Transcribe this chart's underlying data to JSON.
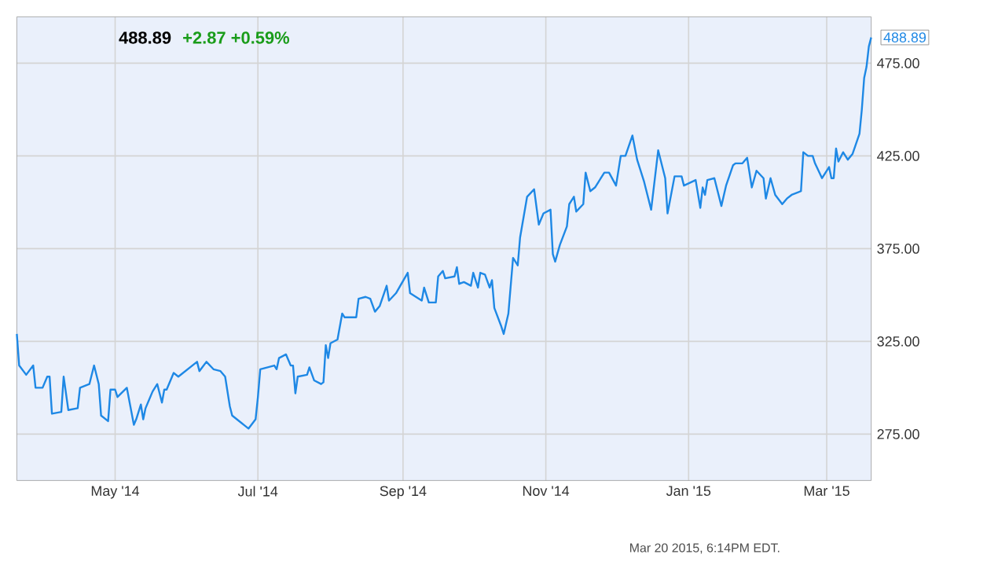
{
  "chart_data": {
    "type": "line",
    "title": "488.89",
    "subtitle": "+2.87  +0.59%",
    "annotations": [
      {
        "text": "488.89",
        "x": "2015-03-20",
        "y": 488.89
      },
      "Mar 20 2015, 6:14PM EDT."
    ],
    "xlim": [
      "2014-03-20",
      "2015-03-20"
    ],
    "xticks": [
      {
        "value": "2014-05-01",
        "label": "May '14"
      },
      {
        "value": "2014-07-01",
        "label": "Jul '14"
      },
      {
        "value": "2014-09-01",
        "label": "Sep '14"
      },
      {
        "value": "2014-11-01",
        "label": "Nov '14"
      },
      {
        "value": "2015-01-01",
        "label": "Jan '15"
      },
      {
        "value": "2015-03-01",
        "label": "Mar '15"
      }
    ],
    "ylim": [
      250,
      500
    ],
    "yticks": [
      {
        "value": 275,
        "label": "275.00"
      },
      {
        "value": 325,
        "label": "325.00"
      },
      {
        "value": 375,
        "label": "375.00"
      },
      {
        "value": 425,
        "label": "425.00"
      },
      {
        "value": 475,
        "label": "475.00"
      }
    ],
    "grid": true,
    "marker": "none",
    "line_style": "solid",
    "series": [
      {
        "color": "#1e88e5",
        "x": [
          "2014-03-20",
          "2014-03-21",
          "2014-03-24",
          "2014-03-27",
          "2014-03-28",
          "2014-03-31",
          "2014-04-02",
          "2014-04-03",
          "2014-04-04",
          "2014-04-08",
          "2014-04-09",
          "2014-04-11",
          "2014-04-15",
          "2014-04-16",
          "2014-04-20",
          "2014-04-22",
          "2014-04-24",
          "2014-04-25",
          "2014-04-28",
          "2014-04-29",
          "2014-05-01",
          "2014-05-02",
          "2014-05-06",
          "2014-05-09",
          "2014-05-10",
          "2014-05-12",
          "2014-05-13",
          "2014-05-14",
          "2014-05-17",
          "2014-05-19",
          "2014-05-21",
          "2014-05-22",
          "2014-05-23",
          "2014-05-26",
          "2014-05-28",
          "2014-06-05",
          "2014-06-06",
          "2014-06-09",
          "2014-06-12",
          "2014-06-15",
          "2014-06-17",
          "2014-06-19",
          "2014-06-20",
          "2014-06-24",
          "2014-06-25",
          "2014-06-27",
          "2014-06-30",
          "2014-07-01",
          "2014-07-02",
          "2014-07-08",
          "2014-07-09",
          "2014-07-10",
          "2014-07-13",
          "2014-07-15",
          "2014-07-16",
          "2014-07-17",
          "2014-07-18",
          "2014-07-22",
          "2014-07-23",
          "2014-07-25",
          "2014-07-28",
          "2014-07-29",
          "2014-07-30",
          "2014-07-31",
          "2014-08-01",
          "2014-08-04",
          "2014-08-06",
          "2014-08-07",
          "2014-08-12",
          "2014-08-13",
          "2014-08-16",
          "2014-08-18",
          "2014-08-20",
          "2014-08-22",
          "2014-08-25",
          "2014-08-26",
          "2014-08-29",
          "2014-09-03",
          "2014-09-04",
          "2014-09-09",
          "2014-09-10",
          "2014-09-12",
          "2014-09-15",
          "2014-09-16",
          "2014-09-18",
          "2014-09-19",
          "2014-09-23",
          "2014-09-24",
          "2014-09-25",
          "2014-09-27",
          "2014-09-30",
          "2014-10-01",
          "2014-10-03",
          "2014-10-04",
          "2014-10-06",
          "2014-10-08",
          "2014-10-09",
          "2014-10-10",
          "2014-10-13",
          "2014-10-14",
          "2014-10-16",
          "2014-10-18",
          "2014-10-20",
          "2014-10-21",
          "2014-10-24",
          "2014-10-27",
          "2014-10-29",
          "2014-10-31",
          "2014-11-03",
          "2014-11-04",
          "2014-11-05",
          "2014-11-07",
          "2014-11-10",
          "2014-11-11",
          "2014-11-13",
          "2014-11-14",
          "2014-11-17",
          "2014-11-18",
          "2014-11-20",
          "2014-11-22",
          "2014-11-26",
          "2014-11-28",
          "2014-12-01",
          "2014-12-03",
          "2014-12-05",
          "2014-12-08",
          "2014-12-10",
          "2014-12-13",
          "2014-12-16",
          "2014-12-19",
          "2014-12-22",
          "2014-12-23",
          "2014-12-26",
          "2014-12-29",
          "2014-12-30",
          "2015-01-04",
          "2015-01-06",
          "2015-01-07",
          "2015-01-08",
          "2015-01-09",
          "2015-01-12",
          "2015-01-15",
          "2015-01-17",
          "2015-01-20",
          "2015-01-21",
          "2015-01-24",
          "2015-01-26",
          "2015-01-28",
          "2015-01-30",
          "2015-02-02",
          "2015-02-03",
          "2015-02-05",
          "2015-02-07",
          "2015-02-10",
          "2015-02-12",
          "2015-02-14",
          "2015-02-18",
          "2015-02-19",
          "2015-02-21",
          "2015-02-23",
          "2015-02-24",
          "2015-02-27",
          "2015-03-02",
          "2015-03-03",
          "2015-03-04",
          "2015-03-05",
          "2015-03-06",
          "2015-03-08",
          "2015-03-10",
          "2015-03-12",
          "2015-03-15",
          "2015-03-16",
          "2015-03-17",
          "2015-03-18",
          "2015-03-19",
          "2015-03-20"
        ],
        "values": [
          329,
          312,
          307,
          312,
          300,
          300,
          306,
          306,
          286,
          287,
          306,
          288,
          289,
          300,
          302,
          312,
          302,
          285,
          282,
          299,
          299,
          295,
          300,
          280,
          283,
          291,
          283,
          289,
          298,
          302,
          292,
          299,
          299,
          308,
          306,
          314,
          309,
          314,
          310,
          309,
          306,
          290,
          285,
          281,
          280,
          278,
          283,
          295,
          310,
          312,
          310,
          316,
          318,
          312,
          312,
          297,
          306,
          307,
          311,
          304,
          302,
          303,
          323,
          316,
          324,
          326,
          340,
          338,
          338,
          348,
          349,
          348,
          341,
          344,
          355,
          347,
          351,
          362,
          351,
          347,
          354,
          346,
          346,
          360,
          363,
          359,
          360,
          365,
          356,
          357,
          355,
          362,
          354,
          362,
          361,
          354,
          358,
          343,
          333,
          329,
          340,
          370,
          366,
          381,
          403,
          407,
          388,
          394,
          396,
          372,
          368,
          377,
          387,
          399,
          403,
          395,
          399,
          416,
          406,
          408,
          416,
          416,
          409,
          425,
          425,
          436,
          423,
          411,
          396,
          428,
          413,
          394,
          414,
          414,
          409,
          412,
          397,
          408,
          404,
          412,
          413,
          398,
          409,
          420,
          421,
          421,
          424,
          408,
          417,
          413,
          402,
          413,
          404,
          399,
          402,
          404,
          406,
          427,
          425,
          425,
          421,
          413,
          419,
          413,
          413,
          429,
          422,
          427,
          423,
          426,
          437,
          450,
          467,
          473,
          484,
          488.89
        ]
      }
    ]
  }
}
